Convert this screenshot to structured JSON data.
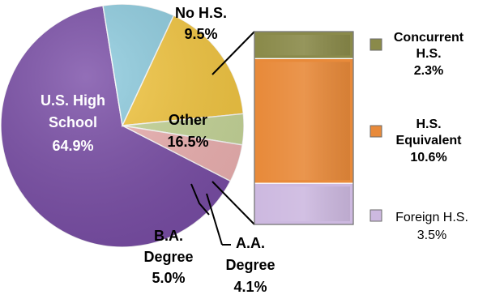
{
  "chart_data": {
    "type": "pie",
    "main_slices": [
      {
        "label": "U.S. High School",
        "value": 64.9,
        "display_value": "64.9%",
        "color": "#7b4fa8"
      },
      {
        "label": "No H.S.",
        "value": 9.5,
        "display_value": "9.5%",
        "color": "#8fcde0"
      },
      {
        "label": "Other",
        "value": 16.5,
        "display_value": "16.5%",
        "color": "#f5c842"
      },
      {
        "label": "A.A. Degree",
        "value": 4.1,
        "display_value": "4.1%",
        "color": "#c9d99b"
      },
      {
        "label": "B.A. Degree",
        "value": 5.0,
        "display_value": "5.0%",
        "color": "#f0b4b4"
      }
    ],
    "breakdown_of": "Other",
    "breakdown": [
      {
        "label": "Concurrent H.S.",
        "value": 2.3,
        "display_value": "2.3%",
        "color": "#8a8a4a"
      },
      {
        "label": "H.S. Equivalent",
        "value": 10.6,
        "display_value": "10.6%",
        "color": "#e88a3a"
      },
      {
        "label": "Foreign H.S.",
        "value": 3.5,
        "display_value": "3.5%",
        "color": "#cdb9e0"
      }
    ]
  }
}
